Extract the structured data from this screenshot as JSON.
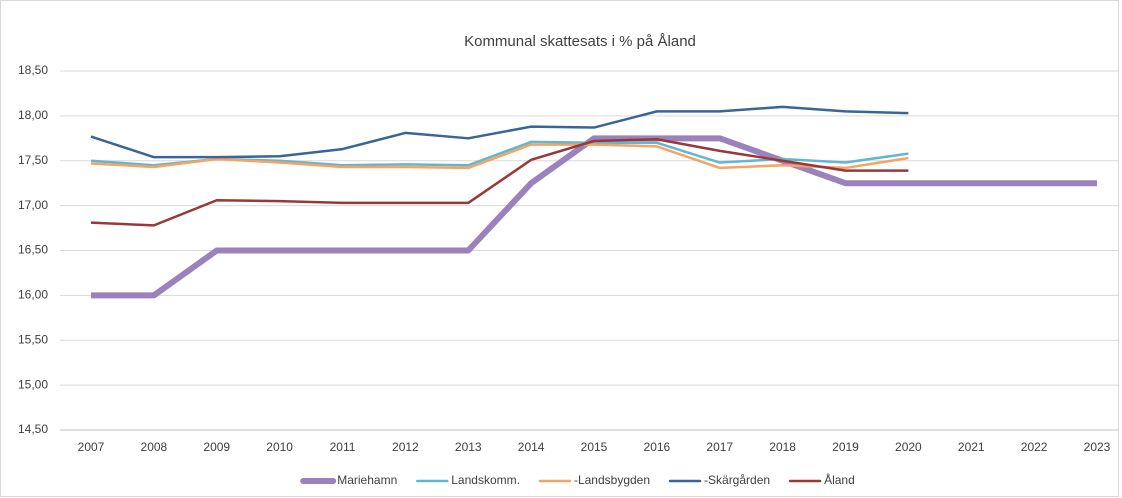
{
  "chart_data": {
    "type": "line",
    "title": "Kommunal  skattesats i % på Åland",
    "categories": [
      "2007",
      "2008",
      "2009",
      "2010",
      "2011",
      "2012",
      "2013",
      "2014",
      "2015",
      "2016",
      "2017",
      "2018",
      "2019",
      "2020",
      "2021",
      "2022",
      "2023"
    ],
    "series": [
      {
        "name": "Mariehamn",
        "color": "#9a82bd",
        "width": 6,
        "values": [
          16,
          16,
          16.5,
          16.5,
          16.5,
          16.5,
          16.5,
          17.25,
          17.75,
          17.75,
          17.75,
          17.5,
          17.25,
          17.25,
          17.25,
          17.25,
          17.25
        ]
      },
      {
        "name": "Landskomm.",
        "color": "#62b6cf",
        "width": 2.5,
        "values": [
          17.5,
          17.45,
          17.52,
          17.5,
          17.45,
          17.46,
          17.45,
          17.71,
          17.7,
          17.7,
          17.48,
          17.52,
          17.48,
          17.58,
          null,
          null,
          null
        ]
      },
      {
        "name": "-Landsbygden",
        "color": "#f5a462",
        "width": 2.5,
        "values": [
          17.47,
          17.43,
          17.52,
          17.48,
          17.43,
          17.43,
          17.42,
          17.68,
          17.68,
          17.66,
          17.42,
          17.45,
          17.42,
          17.53,
          null,
          null,
          null
        ]
      },
      {
        "name": "-Skärgården",
        "color": "#3a6596",
        "width": 2.5,
        "values": [
          17.77,
          17.54,
          17.54,
          17.55,
          17.63,
          17.81,
          17.75,
          17.88,
          17.87,
          18.05,
          18.05,
          18.1,
          18.05,
          18.03,
          null,
          null,
          null
        ]
      },
      {
        "name": "Åland",
        "color": "#983838",
        "width": 2.5,
        "values": [
          16.81,
          16.78,
          17.06,
          17.05,
          17.03,
          17.03,
          17.03,
          17.51,
          17.72,
          17.74,
          17.61,
          17.5,
          17.39,
          17.39,
          null,
          null,
          null
        ]
      }
    ],
    "ylim": [
      14.5,
      18.5
    ],
    "yticks": [
      {
        "value": 14.5,
        "label": "14,50"
      },
      {
        "value": 15,
        "label": "15,00"
      },
      {
        "value": 15.5,
        "label": "15,50"
      },
      {
        "value": 16,
        "label": "16,00"
      },
      {
        "value": 16.5,
        "label": "16,50"
      },
      {
        "value": 17,
        "label": "17,00"
      },
      {
        "value": 17.5,
        "label": "17,50"
      },
      {
        "value": 18,
        "label": "18,00"
      },
      {
        "value": 18.5,
        "label": "18,50"
      }
    ],
    "grid": true,
    "legend": "bottom"
  }
}
